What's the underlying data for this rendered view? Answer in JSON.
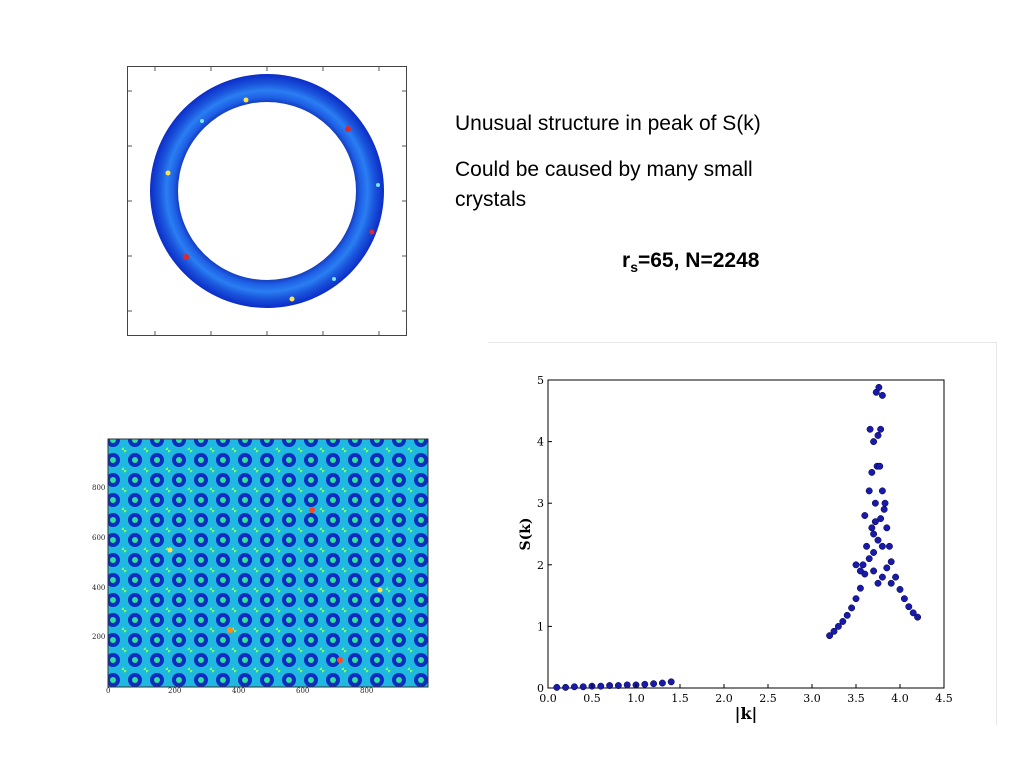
{
  "text": {
    "line1": "Unusual structure in peak of  S(k)",
    "line2a": "Could be caused by many small",
    "line2b": "crystals",
    "params_r": "r",
    "params_sub": "s",
    "params_rest": "=65, N=2248"
  },
  "density_map": {
    "x_ticks": [
      "0",
      "200",
      "400",
      "600",
      "800"
    ],
    "y_ticks": [
      "200",
      "400",
      "600",
      "800"
    ]
  },
  "chart_data": {
    "type": "scatter",
    "xlabel": "|k|",
    "ylabel": "S(k)",
    "xlim": [
      0.0,
      4.5
    ],
    "ylim": [
      0,
      5
    ],
    "x_ticks": [
      "0.0",
      "0.5",
      "1.0",
      "1.5",
      "2.0",
      "2.5",
      "3.0",
      "3.5",
      "4.0",
      "4.5"
    ],
    "y_ticks": [
      "0",
      "1",
      "2",
      "3",
      "4",
      "5"
    ],
    "grid": false,
    "series_color": "#1a1aaa",
    "points": [
      [
        0.1,
        0.01
      ],
      [
        0.2,
        0.01
      ],
      [
        0.3,
        0.02
      ],
      [
        0.4,
        0.02
      ],
      [
        0.5,
        0.03
      ],
      [
        0.6,
        0.03
      ],
      [
        0.7,
        0.04
      ],
      [
        0.8,
        0.04
      ],
      [
        0.9,
        0.05
      ],
      [
        1.0,
        0.05
      ],
      [
        1.1,
        0.06
      ],
      [
        1.2,
        0.07
      ],
      [
        1.3,
        0.08
      ],
      [
        1.4,
        0.1
      ],
      [
        3.2,
        0.85
      ],
      [
        3.25,
        0.92
      ],
      [
        3.3,
        1.0
      ],
      [
        3.35,
        1.08
      ],
      [
        3.4,
        1.18
      ],
      [
        3.45,
        1.3
      ],
      [
        3.5,
        1.45
      ],
      [
        3.55,
        1.62
      ],
      [
        3.6,
        1.85
      ],
      [
        3.65,
        2.1
      ],
      [
        3.7,
        2.5
      ],
      [
        3.72,
        3.0
      ],
      [
        3.74,
        3.6
      ],
      [
        3.75,
        4.1
      ],
      [
        3.73,
        4.8
      ],
      [
        3.76,
        4.88
      ],
      [
        3.8,
        4.75
      ],
      [
        3.78,
        4.2
      ],
      [
        3.77,
        3.6
      ],
      [
        3.8,
        3.2
      ],
      [
        3.82,
        2.9
      ],
      [
        3.85,
        2.6
      ],
      [
        3.88,
        2.3
      ],
      [
        3.9,
        2.05
      ],
      [
        3.95,
        1.8
      ],
      [
        4.0,
        1.6
      ],
      [
        4.05,
        1.45
      ],
      [
        4.1,
        1.32
      ],
      [
        4.15,
        1.22
      ],
      [
        4.2,
        1.15
      ],
      [
        3.6,
        2.8
      ],
      [
        3.65,
        3.2
      ],
      [
        3.68,
        2.6
      ],
      [
        3.62,
        2.3
      ],
      [
        3.58,
        2.0
      ],
      [
        3.5,
        2.0
      ],
      [
        3.55,
        1.9
      ],
      [
        3.7,
        1.9
      ],
      [
        3.75,
        1.7
      ],
      [
        3.8,
        1.8
      ],
      [
        3.85,
        1.95
      ],
      [
        3.9,
        1.7
      ],
      [
        3.7,
        2.2
      ],
      [
        3.75,
        2.4
      ],
      [
        3.8,
        2.3
      ],
      [
        3.72,
        2.7
      ],
      [
        3.78,
        2.75
      ],
      [
        3.83,
        3.0
      ],
      [
        3.68,
        3.5
      ],
      [
        3.7,
        4.0
      ],
      [
        3.66,
        4.2
      ]
    ]
  }
}
